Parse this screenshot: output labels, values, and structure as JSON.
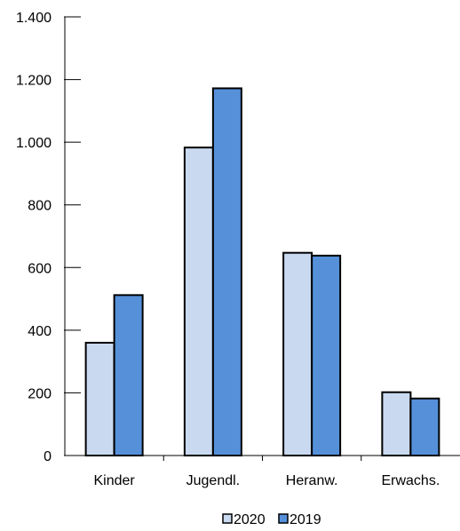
{
  "chart_data": {
    "type": "bar",
    "categories": [
      "Kinder",
      "Jugendl.",
      "Heranw.",
      "Erwachs."
    ],
    "series": [
      {
        "name": "2020",
        "values": [
          360,
          983,
          647,
          202
        ],
        "color": "#c9d9f0"
      },
      {
        "name": "2019",
        "values": [
          512,
          1172,
          638,
          182
        ],
        "color": "#5590d9"
      }
    ],
    "ylim": [
      0,
      1400
    ],
    "yticks": [
      0,
      200,
      400,
      600,
      800,
      1000,
      1200,
      1400
    ],
    "ytick_labels": [
      "0",
      "200",
      "400",
      "600",
      "800",
      "1.000",
      "1.200",
      "1.400"
    ],
    "grid": false,
    "legend_position": "bottom-center",
    "title": "",
    "xlabel": "",
    "ylabel": ""
  }
}
